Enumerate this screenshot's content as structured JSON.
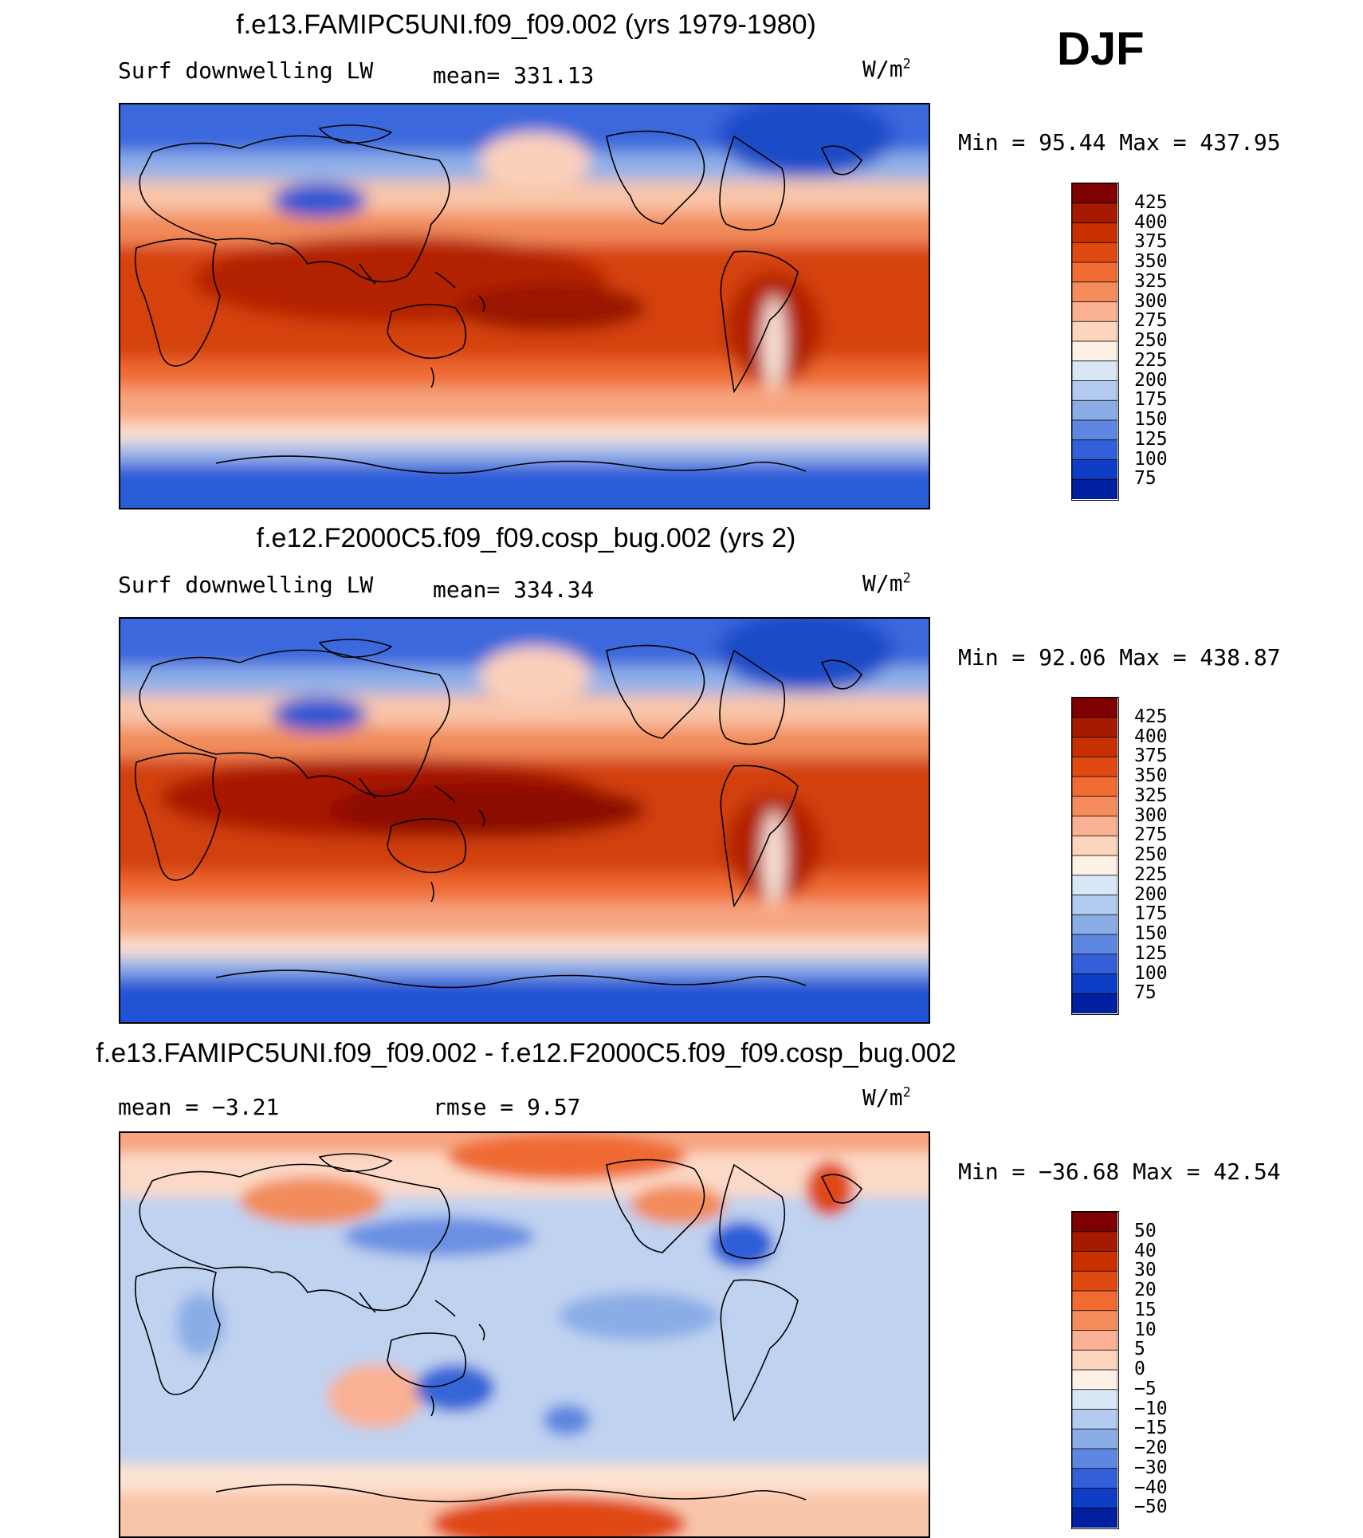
{
  "season": "DJF",
  "panels": [
    {
      "title": "f.e13.FAMIPC5UNI.f09_f09.002 (yrs 1979-1980)",
      "left_label": "Surf downwelling LW",
      "center_label": "mean= 331.13",
      "units_base": "W/m",
      "units_exp": "2",
      "minmax": "Min =   95.44 Max = 437.95",
      "colorbar_labels": [
        "425",
        "400",
        "375",
        "350",
        "325",
        "300",
        "275",
        "250",
        "225",
        "200",
        "175",
        "150",
        "125",
        "100",
        "75"
      ],
      "colorbar_colors": [
        "#7f0000",
        "#a51a00",
        "#c83000",
        "#e04a12",
        "#ef6b32",
        "#f58c5c",
        "#f9b093",
        "#fcd5bd",
        "#fdf0e4",
        "#d9e6f6",
        "#b2cbee",
        "#8aade6",
        "#5d87e0",
        "#3360d9",
        "#0f3ec6",
        "#0020a0"
      ]
    },
    {
      "title": "f.e12.F2000C5.f09_f09.cosp_bug.002 (yrs 2)",
      "left_label": "Surf downwelling LW",
      "center_label": "mean= 334.34",
      "units_base": "W/m",
      "units_exp": "2",
      "minmax": "Min =   92.06 Max = 438.87",
      "colorbar_labels": [
        "425",
        "400",
        "375",
        "350",
        "325",
        "300",
        "275",
        "250",
        "225",
        "200",
        "175",
        "150",
        "125",
        "100",
        "75"
      ],
      "colorbar_colors": [
        "#7f0000",
        "#a51a00",
        "#c83000",
        "#e04a12",
        "#ef6b32",
        "#f58c5c",
        "#f9b093",
        "#fcd5bd",
        "#fdf0e4",
        "#d9e6f6",
        "#b2cbee",
        "#8aade6",
        "#5d87e0",
        "#3360d9",
        "#0f3ec6",
        "#0020a0"
      ]
    },
    {
      "title": "f.e13.FAMIPC5UNI.f09_f09.002 - f.e12.F2000C5.f09_f09.cosp_bug.002",
      "left_label": "mean =   −3.21",
      "center_label": "rmse =    9.57",
      "units_base": "W/m",
      "units_exp": "2",
      "minmax": "Min = −36.68 Max =   42.54",
      "colorbar_labels": [
        "50",
        "40",
        "30",
        "20",
        "15",
        "10",
        "5",
        "0",
        "−5",
        "−10",
        "−15",
        "−20",
        "−30",
        "−40",
        "−50"
      ],
      "colorbar_colors": [
        "#7f0000",
        "#a51a00",
        "#c83000",
        "#e04a12",
        "#ef6b32",
        "#f58c5c",
        "#f9b093",
        "#fcd5bd",
        "#fdf0e4",
        "#d9e6f6",
        "#b2cbee",
        "#8aade6",
        "#5d87e0",
        "#3360d9",
        "#0f3ec6",
        "#0020a0"
      ]
    }
  ],
  "chart_data": [
    {
      "type": "heatmap",
      "title": "f.e13.FAMIPC5UNI.f09_f09.002 (yrs 1979-1980)",
      "variable": "Surf downwelling LW",
      "units": "W/m2",
      "mean": 331.13,
      "min": 95.44,
      "max": 437.95,
      "contour_levels": [
        75,
        100,
        125,
        150,
        175,
        200,
        225,
        250,
        275,
        300,
        325,
        350,
        375,
        400,
        425
      ],
      "projection": "cylindrical equidistant, Pacific-centered"
    },
    {
      "type": "heatmap",
      "title": "f.e12.F2000C5.f09_f09.cosp_bug.002 (yrs 2)",
      "variable": "Surf downwelling LW",
      "units": "W/m2",
      "mean": 334.34,
      "min": 92.06,
      "max": 438.87,
      "contour_levels": [
        75,
        100,
        125,
        150,
        175,
        200,
        225,
        250,
        275,
        300,
        325,
        350,
        375,
        400,
        425
      ],
      "projection": "cylindrical equidistant, Pacific-centered"
    },
    {
      "type": "heatmap",
      "title": "f.e13.FAMIPC5UNI.f09_f09.002 - f.e12.F2000C5.f09_f09.cosp_bug.002",
      "units": "W/m2",
      "mean": -3.21,
      "rmse": 9.57,
      "min": -36.68,
      "max": 42.54,
      "contour_levels": [
        -50,
        -40,
        -30,
        -20,
        -15,
        -10,
        -5,
        0,
        5,
        10,
        15,
        20,
        30,
        40,
        50
      ],
      "projection": "cylindrical equidistant, Pacific-centered"
    }
  ]
}
